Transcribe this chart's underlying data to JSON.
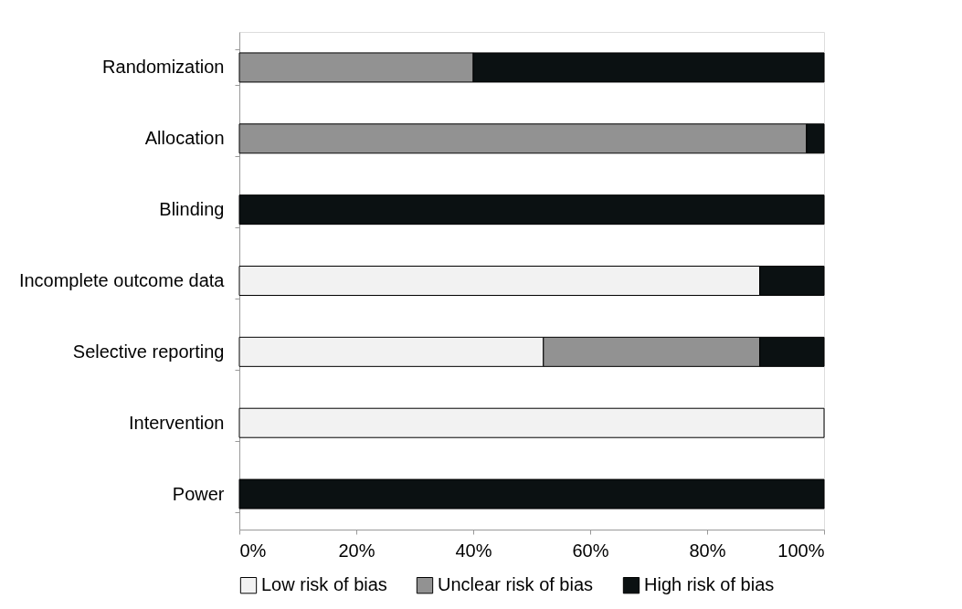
{
  "chart_data": {
    "type": "bar",
    "orientation": "horizontal",
    "stacked": true,
    "categories": [
      "Randomization",
      "Allocation",
      "Blinding",
      "Incomplete outcome data",
      "Selective reporting",
      "Intervention",
      "Power"
    ],
    "series": [
      {
        "name": "Low risk of bias",
        "color": "#f2f2f2",
        "values": [
          0,
          0,
          0,
          89,
          52,
          100,
          0
        ]
      },
      {
        "name": "Unclear risk of bias",
        "color": "#929292",
        "values": [
          40,
          97,
          0,
          0,
          37,
          0,
          0
        ]
      },
      {
        "name": "High risk of bias",
        "color": "#0b1112",
        "values": [
          60,
          3,
          100,
          11,
          11,
          0,
          100
        ]
      }
    ],
    "xlim": [
      0,
      100
    ],
    "xticks": [
      {
        "value": 0,
        "label": "0%"
      },
      {
        "value": 20,
        "label": "20%"
      },
      {
        "value": 40,
        "label": "40%"
      },
      {
        "value": 60,
        "label": "60%"
      },
      {
        "value": 80,
        "label": "80%"
      },
      {
        "value": 100,
        "label": "100%"
      }
    ],
    "grid": false,
    "legend": "bottom"
  }
}
